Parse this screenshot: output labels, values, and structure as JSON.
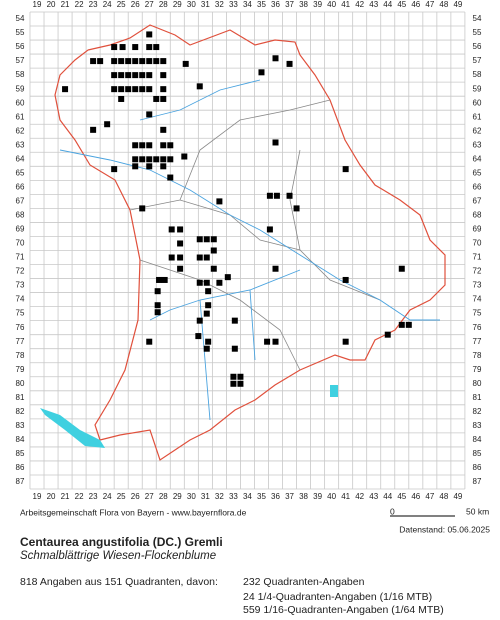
{
  "map": {
    "columns": [
      19,
      20,
      21,
      22,
      23,
      24,
      25,
      26,
      27,
      28,
      29,
      30,
      31,
      32,
      33,
      34,
      35,
      36,
      37,
      38,
      39,
      40,
      41,
      42,
      43,
      44,
      45,
      46,
      47,
      48,
      49
    ],
    "rows": [
      54,
      55,
      56,
      57,
      58,
      59,
      60,
      61,
      62,
      63,
      64,
      65,
      66,
      67,
      68,
      69,
      70,
      71,
      72,
      73,
      74,
      75,
      76,
      77,
      78,
      79,
      80,
      81,
      82,
      83,
      84,
      85,
      86,
      87
    ],
    "points": [
      [
        27,
        55.1
      ],
      [
        24.5,
        56
      ],
      [
        25.1,
        56
      ],
      [
        26,
        56
      ],
      [
        27,
        56
      ],
      [
        27.5,
        56
      ],
      [
        36,
        56.8
      ],
      [
        37,
        57.2
      ],
      [
        23,
        57
      ],
      [
        23.5,
        57
      ],
      [
        24.5,
        57
      ],
      [
        25,
        57
      ],
      [
        25.5,
        57
      ],
      [
        26,
        57
      ],
      [
        26.5,
        57
      ],
      [
        27,
        57
      ],
      [
        27.5,
        57
      ],
      [
        28,
        57
      ],
      [
        29.6,
        57.2
      ],
      [
        24.5,
        58
      ],
      [
        25,
        58
      ],
      [
        25.5,
        58
      ],
      [
        26,
        58
      ],
      [
        26.5,
        58
      ],
      [
        27,
        58
      ],
      [
        28,
        58
      ],
      [
        35,
        57.8
      ],
      [
        21,
        59
      ],
      [
        24.5,
        59
      ],
      [
        25,
        59
      ],
      [
        25.5,
        59
      ],
      [
        26,
        59
      ],
      [
        26.5,
        59
      ],
      [
        27,
        59
      ],
      [
        28,
        59
      ],
      [
        30.6,
        58.8
      ],
      [
        25,
        59.7
      ],
      [
        27.5,
        59.7
      ],
      [
        28,
        59.7
      ],
      [
        27,
        60.8
      ],
      [
        23,
        61.9
      ],
      [
        24,
        61.5
      ],
      [
        28,
        61.9
      ],
      [
        26,
        63
      ],
      [
        26.5,
        63
      ],
      [
        27,
        63
      ],
      [
        28,
        63
      ],
      [
        28.5,
        63
      ],
      [
        36,
        62.8
      ],
      [
        26,
        64
      ],
      [
        26.5,
        64
      ],
      [
        27,
        64
      ],
      [
        27.5,
        64
      ],
      [
        28,
        64
      ],
      [
        28.5,
        64
      ],
      [
        29.5,
        63.8
      ],
      [
        24.5,
        64.7
      ],
      [
        26,
        64.5
      ],
      [
        27,
        64.5
      ],
      [
        28,
        64.5
      ],
      [
        41,
        64.7
      ],
      [
        28.5,
        65.3
      ],
      [
        32,
        67
      ],
      [
        35.6,
        66.6
      ],
      [
        36.1,
        66.6
      ],
      [
        37,
        66.6
      ],
      [
        26.5,
        67.5
      ],
      [
        37.5,
        67.5
      ],
      [
        28.6,
        69
      ],
      [
        29.2,
        69
      ],
      [
        35.6,
        69
      ],
      [
        29.2,
        70
      ],
      [
        30.6,
        69.7
      ],
      [
        31.1,
        69.7
      ],
      [
        31.6,
        69.7
      ],
      [
        28.6,
        71
      ],
      [
        29.2,
        71
      ],
      [
        30.6,
        71
      ],
      [
        31.1,
        71
      ],
      [
        31.6,
        70.5
      ],
      [
        29.2,
        71.8
      ],
      [
        31.6,
        71.8
      ],
      [
        36,
        71.8
      ],
      [
        45,
        71.8
      ],
      [
        27.7,
        72.6
      ],
      [
        28.1,
        72.6
      ],
      [
        30.6,
        72.8
      ],
      [
        31.1,
        72.8
      ],
      [
        32,
        72.8
      ],
      [
        32.6,
        72.4
      ],
      [
        41,
        72.6
      ],
      [
        27.6,
        73.4
      ],
      [
        31.2,
        73.4
      ],
      [
        27.6,
        74.4
      ],
      [
        31.2,
        74.4
      ],
      [
        27.6,
        74.9
      ],
      [
        30.6,
        75.5
      ],
      [
        31.1,
        75
      ],
      [
        33.1,
        75.5
      ],
      [
        45,
        75.8
      ],
      [
        45.5,
        75.8
      ],
      [
        27,
        77
      ],
      [
        30.5,
        76.6
      ],
      [
        31.2,
        77
      ],
      [
        35.4,
        77
      ],
      [
        36,
        77
      ],
      [
        41,
        77
      ],
      [
        44,
        76.5
      ],
      [
        31.1,
        77.5
      ],
      [
        33.1,
        77.5
      ],
      [
        33,
        79.5
      ],
      [
        33.5,
        79.5
      ],
      [
        33,
        80
      ],
      [
        33.5,
        80
      ]
    ],
    "credit": "Arbeitsgemeinschaft Flora von Bayern - www.bayernflora.de",
    "scale_start": "0",
    "scale_end": "50 km",
    "date": "Datenstand: 05.06.2025",
    "title": "Centaurea angustifolia (DC.) Gremli",
    "subtitle": "Schmalblättrige Wiesen-Flockenblume",
    "summary": "818 Angaben aus 151 Quadranten, davon:",
    "counts": [
      "232 Quadranten-Angaben",
      "24 1/4-Quadranten-Angaben (1/16 MTB)",
      "559 1/16-Quadranten-Angaben (1/64 MTB)"
    ]
  }
}
